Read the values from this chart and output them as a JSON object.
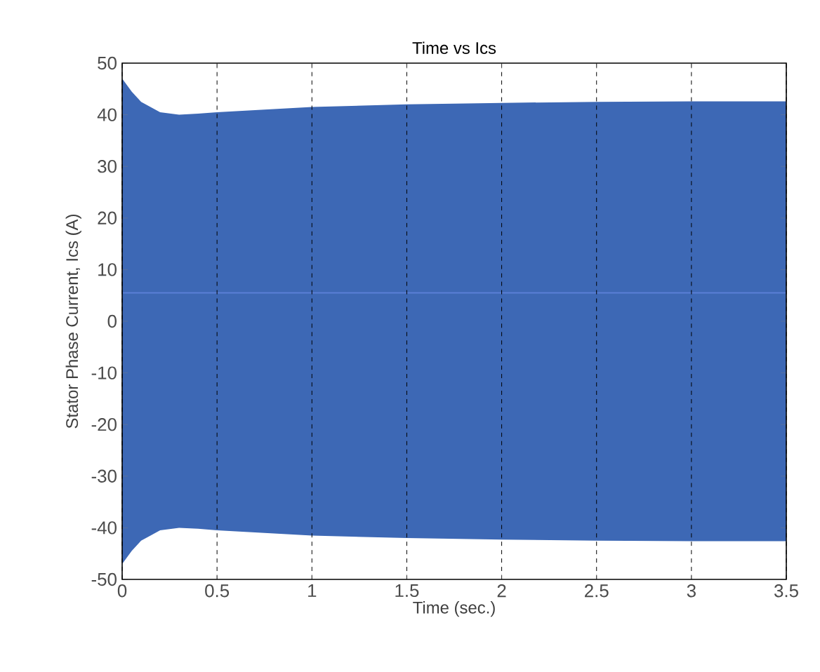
{
  "chart_data": {
    "type": "area",
    "title": "Time vs Ics",
    "xlabel": "Time (sec.)",
    "ylabel": "Stator Phase Current, Ics (A)",
    "x": [
      0,
      0.05,
      0.1,
      0.2,
      0.3,
      0.4,
      0.5,
      0.75,
      1,
      1.5,
      2,
      2.5,
      3,
      3.5
    ],
    "series": [
      {
        "color": "#3d68b5",
        "values": [
          47,
          44.5,
          42.5,
          40.5,
          40,
          40.2,
          40.5,
          41,
          41.5,
          42,
          42.3,
          42.5,
          42.6,
          42.6
        ]
      },
      {
        "color": "#3d68b5",
        "values": [
          -47,
          -44.5,
          -42.5,
          -40.5,
          -40,
          -40.2,
          -40.5,
          -41,
          -41.5,
          -42,
          -42.3,
          -42.5,
          -42.6,
          -42.6
        ]
      },
      {
        "type": "line",
        "color": "#5a7fd6",
        "values": [
          5.5,
          5.5,
          5.5,
          5.5,
          5.5,
          5.5,
          5.5,
          5.5,
          5.5,
          5.5,
          5.5,
          5.5,
          5.5,
          5.5
        ]
      }
    ],
    "xlim": [
      0,
      3.5
    ],
    "ylim": [
      -50,
      50
    ],
    "xticks": [
      0,
      0.5,
      1,
      1.5,
      2,
      2.5,
      3,
      3.5
    ],
    "yticks": [
      -50,
      -40,
      -30,
      -20,
      -10,
      0,
      10,
      20,
      30,
      40,
      50
    ],
    "grid": "x",
    "marker": "none",
    "line_style": "solid"
  }
}
